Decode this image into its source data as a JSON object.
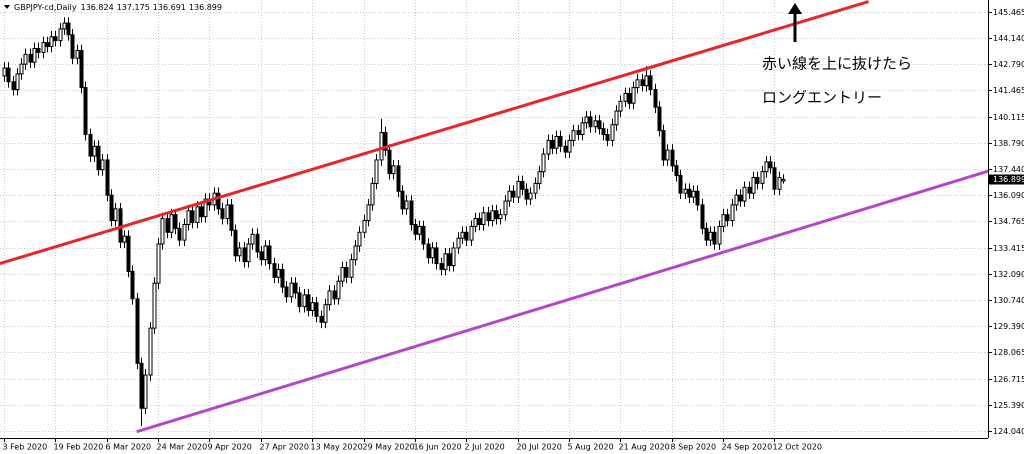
{
  "chart_data": {
    "type": "candlestick",
    "title": "GBPJPY-cd,Daily",
    "annotations": [
      "赤い線を上に抜けたら",
      "ロングエントリー"
    ],
    "categories": [
      "3 Feb 2020",
      null,
      null,
      null,
      null,
      null,
      null,
      null,
      null,
      null,
      null,
      null,
      "19 Feb 2020",
      null,
      null,
      null,
      null,
      null,
      null,
      null,
      null,
      null,
      null,
      null,
      "6 Mar 2020",
      null,
      null,
      null,
      null,
      null,
      null,
      null,
      null,
      null,
      null,
      null,
      "24 Mar 2020",
      null,
      null,
      null,
      null,
      null,
      null,
      null,
      null,
      null,
      null,
      null,
      "9 Apr 2020",
      null,
      null,
      null,
      null,
      null,
      null,
      null,
      null,
      null,
      null,
      null,
      "27 Apr 2020",
      null,
      null,
      null,
      null,
      null,
      null,
      null,
      null,
      null,
      null,
      null,
      "13 May 2020",
      null,
      null,
      null,
      null,
      null,
      null,
      null,
      null,
      null,
      null,
      null,
      "29 May 2020",
      null,
      null,
      null,
      null,
      null,
      null,
      null,
      null,
      null,
      null,
      null,
      "16 Jun 2020",
      null,
      null,
      null,
      null,
      null,
      null,
      null,
      null,
      null,
      null,
      null,
      "2 Jul 2020",
      null,
      null,
      null,
      null,
      null,
      null,
      null,
      null,
      null,
      null,
      null,
      "20 Jul 2020",
      null,
      null,
      null,
      null,
      null,
      null,
      null,
      null,
      null,
      null,
      null,
      "5 Aug 2020",
      null,
      null,
      null,
      null,
      null,
      null,
      null,
      null,
      null,
      null,
      null,
      "21 Aug 2020",
      null,
      null,
      null,
      null,
      null,
      null,
      null,
      null,
      null,
      null,
      null,
      "8 Sep 2020",
      null,
      null,
      null,
      null,
      null,
      null,
      null,
      null,
      null,
      null,
      null,
      "24 Sep 2020",
      null,
      null,
      null,
      null,
      null,
      null,
      null,
      null,
      null,
      null,
      null,
      "12 Oct 2020",
      null,
      null
    ],
    "open": [
      142.2,
      142.6,
      141.9,
      141.5,
      142.3,
      142.8,
      143.3,
      142.9,
      143.6,
      143.4,
      143.9,
      143.7,
      144.2,
      144.0,
      144.6,
      144.9,
      144.3,
      143.1,
      143.5,
      141.6,
      139.2,
      138.1,
      138.6,
      137.4,
      137.9,
      136.1,
      134.8,
      135.4,
      133.7,
      134.0,
      132.2,
      130.8,
      127.5,
      125.2,
      126.9,
      129.3,
      131.6,
      133.6,
      134.9,
      134.2,
      135.1,
      134.4,
      133.8,
      134.6,
      135.3,
      134.7,
      135.5,
      135.0,
      135.9,
      135.6,
      136.2,
      135.4,
      134.9,
      135.6,
      134.3,
      133.0,
      133.4,
      132.7,
      133.6,
      134.1,
      133.2,
      132.8,
      133.5,
      132.6,
      131.9,
      132.3,
      131.4,
      130.9,
      131.6,
      131.1,
      130.4,
      131.0,
      130.2,
      130.6,
      129.9,
      129.6,
      130.5,
      131.2,
      130.8,
      131.7,
      132.4,
      131.9,
      132.8,
      133.5,
      134.2,
      134.8,
      135.6,
      136.7,
      137.9,
      139.3,
      138.4,
      137.2,
      137.6,
      136.3,
      135.4,
      135.8,
      134.6,
      134.1,
      134.5,
      133.6,
      132.9,
      133.4,
      132.6,
      132.3,
      133.1,
      132.5,
      133.4,
      133.9,
      134.2,
      133.8,
      134.5,
      134.9,
      134.6,
      135.2,
      134.8,
      135.3,
      134.9,
      135.1,
      135.8,
      136.3,
      136.0,
      136.8,
      136.4,
      135.9,
      136.2,
      136.7,
      137.3,
      138.2,
      138.9,
      138.5,
      139.1,
      138.6,
      138.3,
      138.9,
      139.4,
      139.2,
      139.8,
      140.1,
      139.6,
      139.9,
      139.5,
      139.2,
      138.9,
      139.7,
      140.4,
      140.9,
      141.3,
      140.8,
      141.6,
      142.0,
      141.7,
      142.2,
      141.5,
      140.6,
      139.4,
      137.9,
      138.4,
      137.6,
      137.1,
      136.2,
      136.4,
      136.0,
      136.3,
      135.6,
      134.4,
      133.8,
      134.2,
      133.6,
      134.5,
      135.1,
      134.8,
      135.6,
      136.1,
      135.8,
      136.5,
      136.2,
      137.0,
      136.7,
      137.3,
      137.8,
      137.5,
      136.4,
      136.824
    ],
    "high": [
      142.9,
      142.9,
      142.2,
      142.6,
      143.1,
      143.6,
      143.6,
      143.9,
      143.9,
      144.2,
      144.2,
      144.5,
      144.5,
      144.9,
      145.2,
      145.2,
      144.6,
      143.8,
      143.8,
      141.9,
      139.5,
      138.9,
      138.9,
      138.2,
      138.2,
      136.4,
      135.7,
      135.7,
      134.3,
      134.3,
      132.5,
      131.1,
      127.8,
      127.2,
      129.6,
      131.9,
      133.9,
      135.2,
      135.2,
      135.4,
      135.4,
      134.7,
      134.9,
      135.6,
      135.6,
      135.8,
      135.8,
      136.2,
      136.2,
      136.5,
      136.5,
      135.7,
      135.9,
      135.9,
      134.6,
      133.7,
      133.7,
      133.9,
      134.4,
      134.4,
      133.5,
      133.8,
      133.8,
      132.9,
      132.6,
      132.6,
      131.7,
      131.9,
      131.9,
      131.4,
      131.3,
      131.3,
      130.9,
      130.9,
      130.2,
      130.8,
      131.5,
      131.5,
      132.0,
      132.7,
      132.7,
      133.1,
      133.8,
      134.5,
      135.1,
      135.9,
      137.0,
      138.2,
      140.0,
      139.6,
      138.7,
      137.9,
      137.9,
      136.6,
      136.1,
      136.1,
      134.9,
      134.8,
      134.8,
      133.9,
      133.7,
      133.7,
      132.9,
      133.4,
      133.4,
      133.7,
      134.2,
      134.5,
      134.5,
      134.8,
      135.2,
      135.2,
      135.5,
      135.5,
      135.6,
      135.6,
      135.4,
      136.1,
      136.6,
      136.6,
      137.1,
      137.1,
      136.7,
      136.5,
      137.0,
      137.6,
      138.5,
      139.2,
      139.2,
      139.4,
      139.4,
      138.9,
      139.2,
      139.7,
      139.7,
      140.1,
      140.4,
      140.4,
      140.2,
      140.2,
      139.8,
      139.5,
      140.0,
      140.7,
      141.2,
      141.6,
      141.6,
      141.9,
      142.3,
      142.3,
      142.7,
      142.5,
      141.8,
      140.9,
      139.7,
      138.7,
      138.7,
      137.9,
      137.4,
      136.7,
      136.7,
      136.6,
      136.6,
      135.9,
      134.7,
      134.5,
      134.5,
      134.8,
      135.4,
      135.4,
      135.9,
      136.4,
      136.4,
      136.8,
      136.8,
      137.3,
      137.3,
      137.6,
      138.1,
      138.1,
      137.8,
      137.3,
      137.175
    ],
    "low": [
      141.9,
      141.6,
      141.2,
      141.2,
      142.0,
      142.5,
      142.6,
      142.6,
      143.1,
      143.1,
      143.4,
      143.4,
      143.7,
      143.7,
      144.3,
      144.0,
      142.8,
      142.8,
      141.3,
      138.9,
      137.8,
      137.8,
      137.1,
      137.1,
      135.8,
      134.5,
      134.5,
      133.4,
      133.4,
      131.9,
      130.5,
      127.2,
      124.3,
      124.9,
      126.6,
      129.0,
      131.3,
      133.3,
      133.9,
      133.9,
      134.1,
      133.5,
      133.5,
      134.3,
      134.4,
      134.4,
      134.7,
      134.7,
      135.3,
      135.3,
      135.1,
      134.6,
      134.6,
      134.0,
      132.7,
      132.7,
      132.4,
      132.4,
      133.3,
      132.9,
      132.5,
      132.5,
      132.3,
      131.6,
      131.6,
      131.1,
      130.6,
      130.6,
      130.8,
      130.1,
      130.1,
      129.9,
      129.9,
      129.6,
      129.3,
      129.3,
      130.2,
      130.5,
      130.5,
      131.4,
      131.6,
      131.6,
      132.5,
      133.2,
      133.9,
      134.5,
      135.3,
      136.4,
      137.6,
      138.1,
      136.9,
      136.9,
      136.0,
      135.1,
      135.1,
      134.3,
      133.8,
      133.8,
      133.3,
      132.6,
      132.6,
      132.3,
      132.0,
      132.0,
      132.2,
      132.2,
      133.1,
      133.6,
      133.5,
      133.5,
      134.2,
      134.3,
      134.3,
      134.5,
      134.5,
      134.6,
      134.6,
      134.8,
      135.5,
      135.7,
      135.7,
      136.1,
      135.6,
      135.6,
      135.9,
      136.4,
      137.0,
      137.9,
      138.2,
      138.2,
      138.3,
      138.0,
      138.0,
      138.6,
      138.9,
      138.9,
      139.5,
      139.3,
      139.3,
      139.2,
      138.9,
      138.6,
      138.6,
      139.4,
      140.1,
      140.6,
      140.5,
      140.5,
      141.3,
      141.4,
      141.4,
      141.2,
      140.3,
      139.1,
      137.6,
      137.6,
      137.3,
      136.8,
      135.9,
      135.9,
      135.7,
      135.7,
      135.3,
      134.1,
      133.5,
      133.5,
      133.3,
      133.3,
      134.2,
      134.5,
      134.5,
      135.3,
      135.5,
      135.5,
      135.9,
      135.9,
      136.4,
      136.4,
      137.0,
      137.2,
      136.1,
      136.1,
      136.691
    ],
    "close": [
      142.6,
      141.9,
      141.5,
      142.3,
      142.8,
      143.3,
      142.9,
      143.6,
      143.4,
      143.9,
      143.7,
      144.2,
      144.0,
      144.6,
      144.9,
      144.3,
      143.1,
      143.5,
      141.6,
      139.2,
      138.1,
      138.6,
      137.4,
      137.9,
      136.1,
      134.8,
      135.4,
      133.7,
      134.0,
      132.2,
      130.8,
      127.5,
      125.2,
      126.9,
      129.3,
      131.6,
      133.6,
      134.9,
      134.2,
      135.1,
      134.4,
      133.8,
      134.6,
      135.3,
      134.7,
      135.5,
      135.0,
      135.9,
      135.6,
      136.2,
      135.4,
      134.9,
      135.6,
      134.3,
      133.0,
      133.4,
      132.7,
      133.6,
      134.1,
      133.2,
      132.8,
      133.5,
      132.6,
      131.9,
      132.3,
      131.4,
      130.9,
      131.6,
      131.1,
      130.4,
      131.0,
      130.2,
      130.6,
      129.9,
      129.6,
      130.5,
      131.2,
      130.8,
      131.7,
      132.4,
      131.9,
      132.8,
      133.5,
      134.2,
      134.8,
      135.6,
      136.7,
      137.9,
      139.3,
      138.4,
      137.2,
      137.6,
      136.3,
      135.4,
      135.8,
      134.6,
      134.1,
      134.5,
      133.6,
      132.9,
      133.4,
      132.6,
      132.3,
      133.1,
      132.5,
      133.4,
      133.9,
      134.2,
      133.8,
      134.5,
      134.9,
      134.6,
      135.2,
      134.8,
      135.3,
      134.9,
      135.1,
      135.8,
      136.3,
      136.0,
      136.8,
      136.4,
      135.9,
      136.2,
      136.7,
      137.3,
      138.2,
      138.9,
      138.5,
      139.1,
      138.6,
      138.3,
      138.9,
      139.4,
      139.2,
      139.8,
      140.1,
      139.6,
      139.9,
      139.5,
      139.2,
      138.9,
      139.7,
      140.4,
      140.9,
      141.3,
      140.8,
      141.6,
      142.0,
      141.7,
      142.2,
      141.5,
      140.6,
      139.4,
      137.9,
      138.4,
      137.6,
      137.1,
      136.2,
      136.4,
      136.0,
      136.3,
      135.6,
      134.4,
      133.8,
      134.2,
      133.6,
      134.5,
      135.1,
      134.8,
      135.6,
      136.1,
      135.8,
      136.5,
      136.2,
      137.0,
      136.7,
      137.3,
      137.8,
      137.5,
      136.4,
      137.0,
      136.899
    ],
    "lines": [
      {
        "color": "#e8262a",
        "points": [
          [
            -1,
            132.6
          ],
          [
            202,
            146.0
          ]
        ]
      },
      {
        "color": "#b447c8",
        "points": [
          [
            31,
            124.0
          ],
          [
            237,
            137.8
          ]
        ]
      }
    ],
    "ylim": [
      123.68,
      146.08
    ],
    "yticks": [
      145.465,
      {
        "value": 144.14,
        "label": "144.140"
      },
      {
        "value": 142.79,
        "label": "142.790"
      },
      141.465,
      140.115,
      {
        "value": 138.79,
        "label": "138.790"
      },
      {
        "value": 137.44,
        "label": "137.440"
      },
      {
        "value": 136.09,
        "label": "136.090"
      },
      134.765,
      133.415,
      {
        "value": 132.09,
        "label": "132.090"
      },
      {
        "value": 130.74,
        "label": "130.740"
      },
      {
        "value": 129.39,
        "label": "129.390"
      },
      128.065,
      126.715,
      {
        "value": 125.39,
        "label": "125.390"
      },
      {
        "value": 124.04,
        "label": "124.040"
      }
    ],
    "grid": true
  }
}
